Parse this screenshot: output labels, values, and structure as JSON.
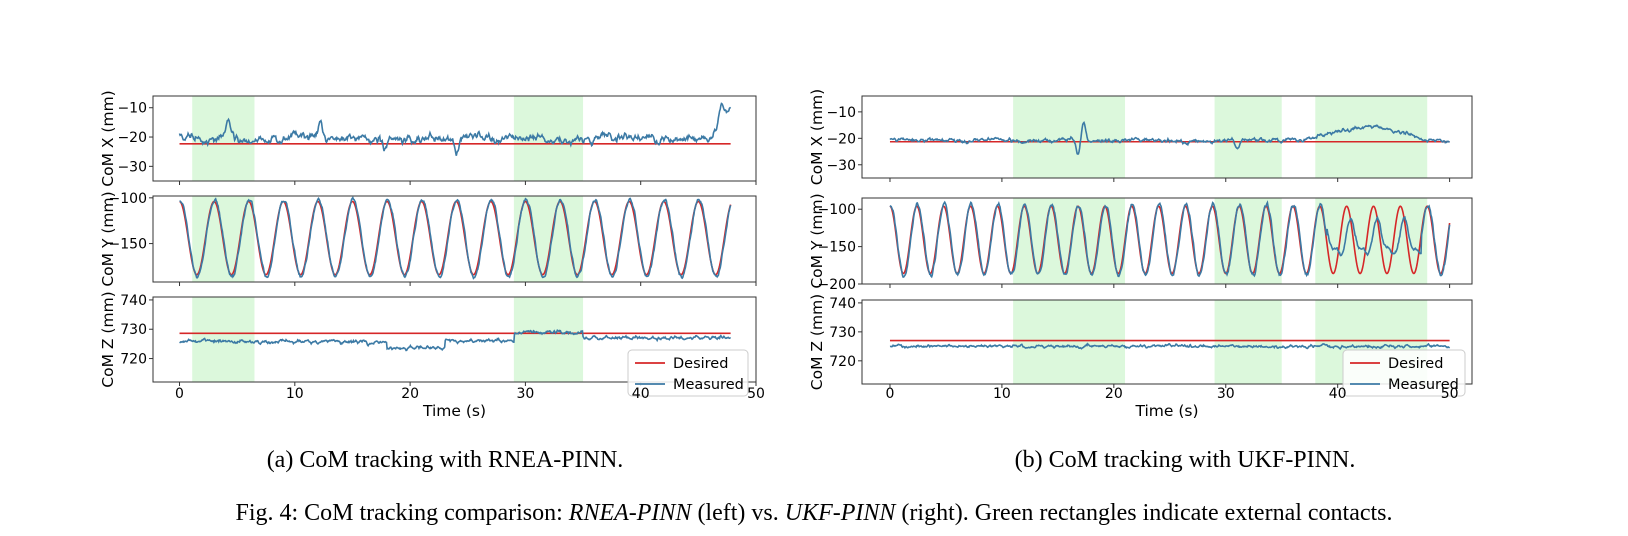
{
  "figure": {
    "subcaption_left": "(a) CoM tracking with RNEA-PINN.",
    "subcaption_right": "(b) CoM tracking with UKF-PINN.",
    "caption_prefix": "Fig. 4: CoM tracking comparison: ",
    "caption_method_a": "RNEA-PINN",
    "caption_middle": " (left) vs. ",
    "caption_method_b": "UKF-PINN",
    "caption_suffix": " (right). Green rectangles indicate external contacts."
  },
  "colors": {
    "desired": "#d62728",
    "measured": "#3c7aa5",
    "contact": "#dcf8dc"
  },
  "chart_data": [
    {
      "id": "rnea",
      "type": "line",
      "xlabel": "Time (s)",
      "xlim": [
        -2.3,
        50
      ],
      "xticks": [
        0,
        10,
        20,
        30,
        40,
        50
      ],
      "duration": 47.8,
      "contacts": [
        [
          1.1,
          6.5
        ],
        [
          29.0,
          35.0
        ]
      ],
      "legend": {
        "position": "bottom-right",
        "entries": [
          "Desired",
          "Measured"
        ]
      },
      "panels": [
        {
          "axis": "x",
          "ylabel": "CoM X (mm)",
          "ylim": [
            -35,
            -6
          ],
          "yticks": [
            -30,
            -20,
            -10
          ],
          "desired": -22.3,
          "measured_mean": -20.5,
          "measured_noise": 2.2,
          "spikes": [
            [
              4.2,
              6
            ],
            [
              12.2,
              5
            ],
            [
              17.8,
              -4
            ],
            [
              24.0,
              -5
            ],
            [
              47.0,
              7
            ]
          ],
          "end_rise": [
            46.2,
            47.8,
            -8
          ]
        },
        {
          "axis": "y",
          "ylabel": "CoM Y (mm)",
          "ylim": [
            -192,
            -98
          ],
          "yticks": [
            -150,
            -100
          ],
          "desired_center": -144,
          "amplitude": 40,
          "period": 3.0,
          "phase": 0.0,
          "desired": -144,
          "measured_mean": -144,
          "measured_noise": 1.5
        },
        {
          "axis": "z",
          "ylabel": "CoM Z (mm)",
          "ylim": [
            712,
            741
          ],
          "yticks": [
            720,
            730,
            740
          ],
          "desired": 728.6,
          "measured_mean": 725.8,
          "measured_noise": 1.0,
          "segments": [
            [
              0,
              18,
              725.8
            ],
            [
              18,
              23,
              723.5
            ],
            [
              23,
              29,
              726.0
            ],
            [
              29,
              35,
              729.0
            ],
            [
              35,
              48,
              727.0
            ]
          ]
        }
      ]
    },
    {
      "id": "ukf",
      "type": "line",
      "xlabel": "Time (s)",
      "xlim": [
        -2.5,
        52
      ],
      "xticks": [
        0,
        10,
        20,
        30,
        40,
        50
      ],
      "duration": 50.0,
      "contacts": [
        [
          11.0,
          21.0
        ],
        [
          29.0,
          35.0
        ],
        [
          38.0,
          48.0
        ]
      ],
      "legend": {
        "position": "bottom-right",
        "entries": [
          "Desired",
          "Measured"
        ]
      },
      "panels": [
        {
          "axis": "x",
          "ylabel": "CoM X (mm)",
          "ylim": [
            -35,
            -4
          ],
          "yticks": [
            -30,
            -20,
            -10
          ],
          "desired": -21.3,
          "measured_mean": -20.8,
          "measured_noise": 1.3,
          "spikes": [
            [
              17.3,
              7
            ],
            [
              16.8,
              -5
            ],
            [
              31.0,
              -3
            ]
          ],
          "bulge": [
            37.0,
            48.0,
            5
          ]
        },
        {
          "axis": "y",
          "ylabel": "CoM Y (mm)",
          "ylim": [
            -200,
            -85
          ],
          "yticks": [
            -200,
            -150,
            -100
          ],
          "desired_center": -141,
          "amplitude": 45,
          "period": 2.4,
          "phase": 0.0,
          "desired": -141,
          "measured_mean": -141,
          "measured_noise": 2.0,
          "damped": [
            39.0,
            47.5,
            0.45
          ]
        },
        {
          "axis": "z",
          "ylabel": "CoM Z (mm)",
          "ylim": [
            712,
            741
          ],
          "yticks": [
            720,
            730,
            740
          ],
          "desired": 727.0,
          "measured_mean": 725.0,
          "measured_noise": 0.8,
          "segments": [
            [
              0,
              50,
              725.0
            ]
          ]
        }
      ]
    }
  ]
}
